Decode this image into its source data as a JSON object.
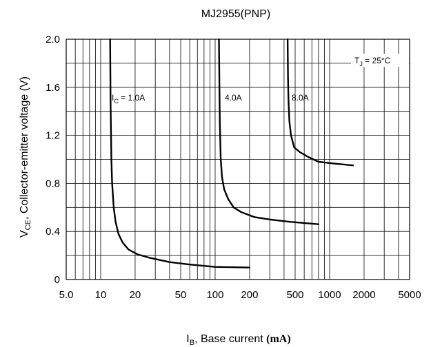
{
  "chart_data": {
    "type": "line",
    "title": "MJ2955(PNP)",
    "xlabel": {
      "main": "I",
      "sub": "B",
      "rest": ", Base current ",
      "unit": "(mA)"
    },
    "ylabel": {
      "main": "V",
      "sub": "CE",
      "rest": ", Collector-emitter voltage (V)"
    },
    "x_scale": "log",
    "xlim": [
      5,
      5000
    ],
    "ylim": [
      0,
      2.0
    ],
    "x_ticks": [
      {
        "value": 5,
        "label": "5.0"
      },
      {
        "value": 10,
        "label": "10"
      },
      {
        "value": 20,
        "label": "20"
      },
      {
        "value": 50,
        "label": "50"
      },
      {
        "value": 100,
        "label": "100"
      },
      {
        "value": 200,
        "label": "200"
      },
      {
        "value": 500,
        "label": "500"
      },
      {
        "value": 1000,
        "label": "1000"
      },
      {
        "value": 2000,
        "label": "2000"
      },
      {
        "value": 5000,
        "label": "5000"
      }
    ],
    "y_ticks": [
      {
        "value": 0,
        "label": "0"
      },
      {
        "value": 0.4,
        "label": "0.4"
      },
      {
        "value": 0.8,
        "label": "0.8"
      },
      {
        "value": 1.2,
        "label": "1.2"
      },
      {
        "value": 1.6,
        "label": "1.6"
      },
      {
        "value": 2.0,
        "label": "2.0"
      }
    ],
    "grid": true,
    "annotation": {
      "main": "T",
      "sub": "J",
      "rest": " = 25°C"
    },
    "series": [
      {
        "label": {
          "main": "I",
          "sub": "C",
          "rest": " = 1.0A"
        },
        "points": [
          [
            12.1,
            2.0
          ],
          [
            12.2,
            1.5
          ],
          [
            12.4,
            1.0
          ],
          [
            12.6,
            0.8
          ],
          [
            13.0,
            0.6
          ],
          [
            13.5,
            0.48
          ],
          [
            14.3,
            0.38
          ],
          [
            15.5,
            0.31
          ],
          [
            17.5,
            0.25
          ],
          [
            21,
            0.21
          ],
          [
            27,
            0.18
          ],
          [
            40,
            0.145
          ],
          [
            60,
            0.125
          ],
          [
            100,
            0.105
          ],
          [
            200,
            0.1
          ]
        ]
      },
      {
        "label": {
          "main": "",
          "sub": "",
          "rest": "4.0A"
        },
        "points": [
          [
            108,
            2.0
          ],
          [
            109,
            1.6
          ],
          [
            110,
            1.3
          ],
          [
            112,
            1.0
          ],
          [
            115,
            0.85
          ],
          [
            120,
            0.75
          ],
          [
            130,
            0.67
          ],
          [
            145,
            0.6
          ],
          [
            170,
            0.56
          ],
          [
            220,
            0.52
          ],
          [
            300,
            0.5
          ],
          [
            450,
            0.48
          ],
          [
            800,
            0.46
          ]
        ]
      },
      {
        "label": {
          "main": "",
          "sub": "",
          "rest": "8.0A"
        },
        "points": [
          [
            430,
            2.0
          ],
          [
            433,
            1.7
          ],
          [
            437,
            1.5
          ],
          [
            445,
            1.32
          ],
          [
            460,
            1.2
          ],
          [
            490,
            1.1
          ],
          [
            550,
            1.06
          ],
          [
            650,
            1.02
          ],
          [
            800,
            0.98
          ],
          [
            1100,
            0.965
          ],
          [
            1600,
            0.95
          ]
        ]
      }
    ]
  }
}
